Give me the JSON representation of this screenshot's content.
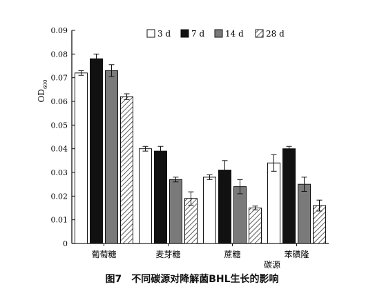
{
  "caption": {
    "figure_number": "图7",
    "text": "不同碳源对降解菌BHL生长的影响"
  },
  "chart_data": {
    "type": "bar",
    "title": "",
    "xlabel": "碳源",
    "ylabel_main": "OD",
    "ylabel_sub": "600",
    "ylim": [
      0,
      0.09
    ],
    "yticks": [
      "0",
      "0.01",
      "0.02",
      "0.03",
      "0.04",
      "0.05",
      "0.06",
      "0.07",
      "0.08",
      "0.09"
    ],
    "categories": [
      "葡萄糖",
      "麦芽糖",
      "蔗糖",
      "苯磺隆"
    ],
    "legend_position": "top-right",
    "series": [
      {
        "name": "3 d",
        "fill": "white",
        "values": [
          0.072,
          0.04,
          0.028,
          0.034
        ],
        "errors": [
          0.001,
          0.001,
          0.001,
          0.0035
        ]
      },
      {
        "name": "7 d",
        "fill": "black",
        "values": [
          0.078,
          0.039,
          0.031,
          0.04
        ],
        "errors": [
          0.002,
          0.002,
          0.004,
          0.001
        ]
      },
      {
        "name": "14 d",
        "fill": "gray",
        "values": [
          0.073,
          0.027,
          0.024,
          0.025
        ],
        "errors": [
          0.0025,
          0.001,
          0.003,
          0.003
        ]
      },
      {
        "name": "28 d",
        "fill": "hatched",
        "values": [
          0.062,
          0.019,
          0.015,
          0.016
        ],
        "errors": [
          0.0012,
          0.0028,
          0.0008,
          0.0023
        ]
      }
    ]
  }
}
